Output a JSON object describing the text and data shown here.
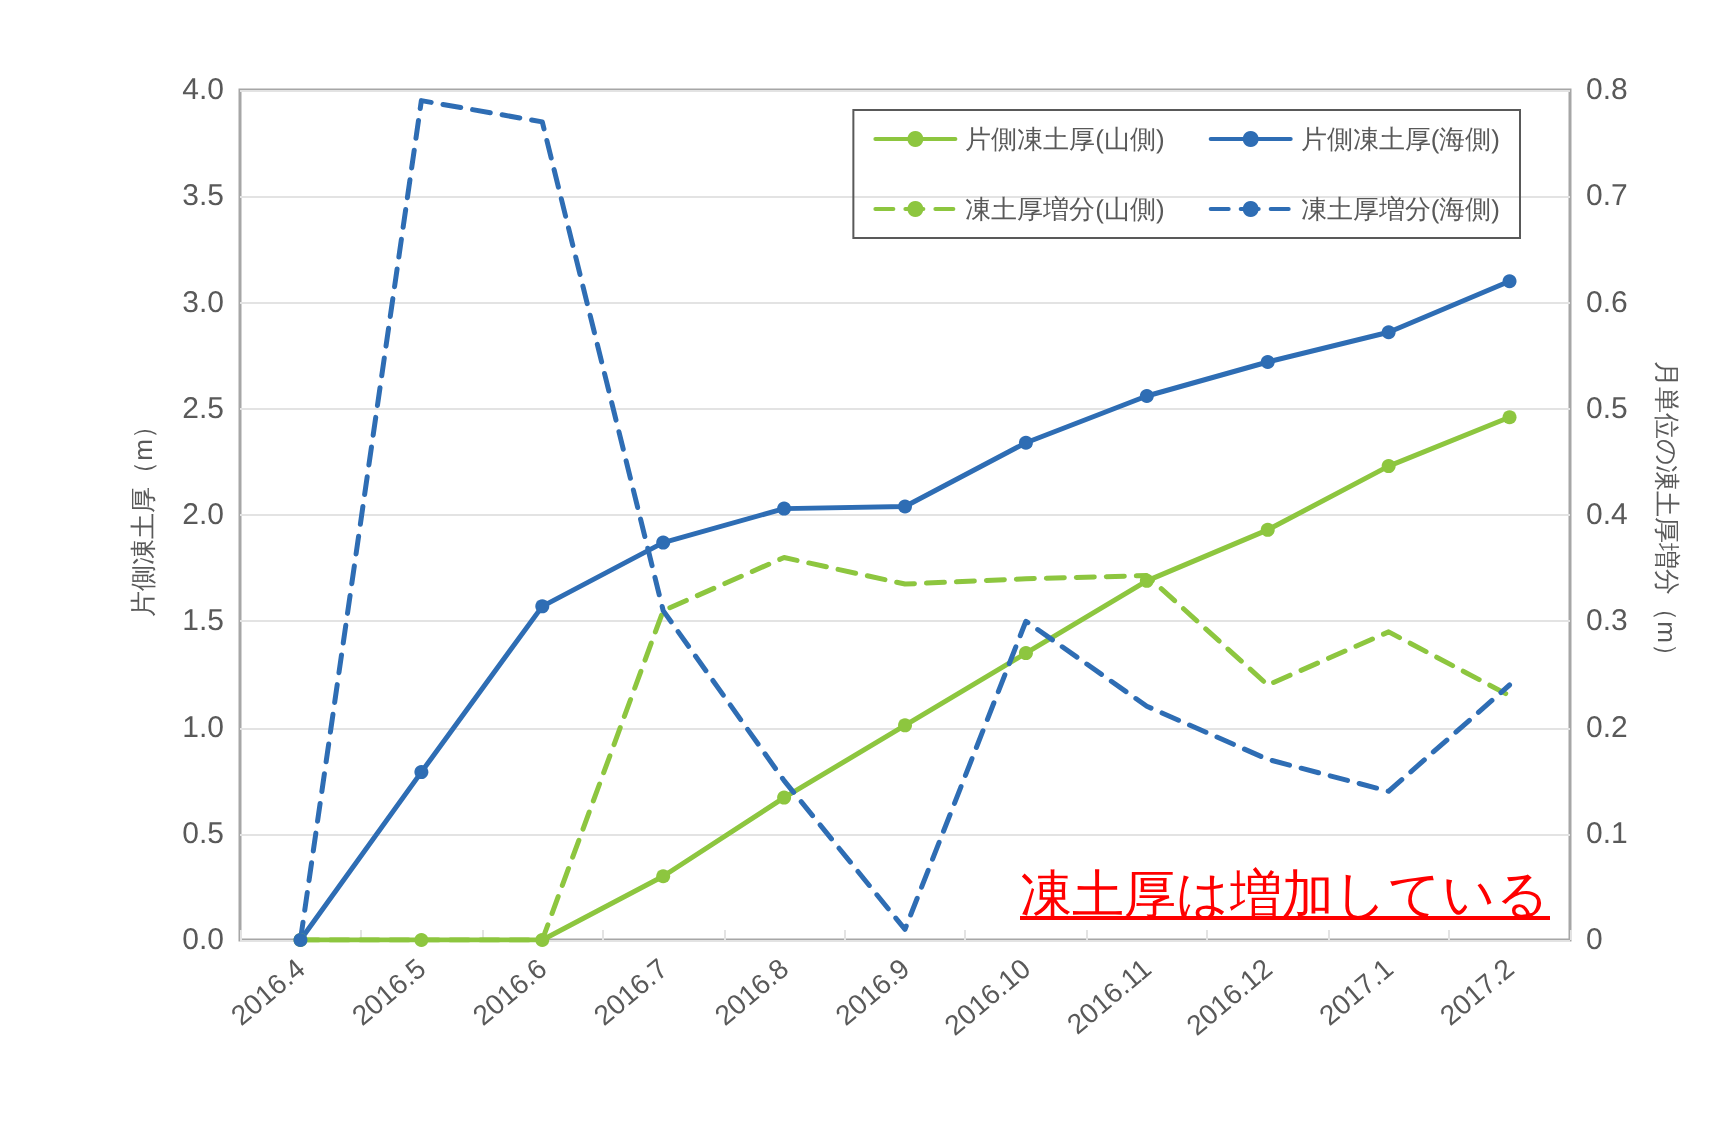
{
  "chart_data": {
    "type": "line",
    "categories": [
      "2016.4",
      "2016.5",
      "2016.6",
      "2016.7",
      "2016.8",
      "2016.9",
      "2016.10",
      "2016.11",
      "2016.12",
      "2017.1",
      "2017.2"
    ],
    "ylabel": "片側凍土厚（m）",
    "y2label": "月単位の凍土厚増分（m）",
    "ylim": [
      0,
      4
    ],
    "yticks": [
      {
        "value": 0,
        "label": "0.0"
      },
      {
        "value": 0.5,
        "label": "0.5"
      },
      {
        "value": 1,
        "label": "1.0"
      },
      {
        "value": 1.5,
        "label": "1.5"
      },
      {
        "value": 2,
        "label": "2.0"
      },
      {
        "value": 2.5,
        "label": "2.5"
      },
      {
        "value": 3,
        "label": "3.0"
      },
      {
        "value": 3.5,
        "label": "3.5"
      },
      {
        "value": 4,
        "label": "4.0"
      }
    ],
    "y2lim": [
      0,
      0.8
    ],
    "y2ticks": [
      0,
      0.1,
      0.2,
      0.3,
      0.4,
      0.5,
      0.6,
      0.7,
      0.8
    ],
    "grid": "y",
    "legend": "top right",
    "annotations": [
      "凍土厚は増加している"
    ],
    "series": [
      {
        "name": "片側凍土厚(山側)",
        "color": "#8dc63f",
        "marker": "circle",
        "line_style": "solid",
        "values": [
          0,
          0,
          0,
          0.3,
          0.67,
          1.01,
          1.35,
          1.69,
          1.93,
          2.23,
          2.46
        ]
      },
      {
        "name": "片側凍土厚(海側)",
        "color": "#2e6db4",
        "marker": "circle",
        "line_style": "solid",
        "values": [
          0,
          0.79,
          1.57,
          1.87,
          2.03,
          2.04,
          2.34,
          2.56,
          2.72,
          2.86,
          3.1
        ]
      },
      {
        "name": "凍土厚増分(山側)",
        "color": "#8dc63f",
        "marker": "none",
        "line_style": "dashed",
        "axis": "y2",
        "values": [
          0,
          0,
          0,
          0.31,
          0.36,
          0.335,
          0.34,
          0.343,
          0.24,
          0.29,
          0.23
        ]
      },
      {
        "name": "凍土厚増分(海側)",
        "color": "#2e6db4",
        "marker": "none",
        "line_style": "dashed",
        "axis": "y2",
        "values": [
          0,
          0.79,
          0.77,
          0.31,
          0.15,
          0.01,
          0.3,
          0.22,
          0.17,
          0.14,
          0.24
        ]
      }
    ]
  }
}
